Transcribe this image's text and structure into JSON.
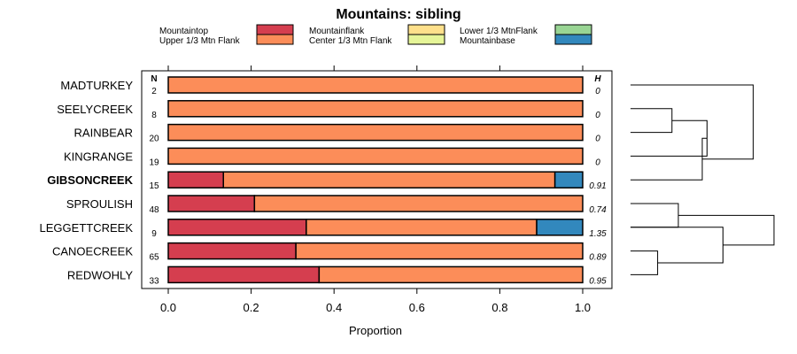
{
  "chart_data": {
    "type": "bar",
    "subtype": "stacked-horizontal-proportion",
    "title": "Mountains: sibling",
    "xlabel": "Proportion",
    "ylabel": "",
    "xlim": [
      0,
      1
    ],
    "xticks": [
      "0.0",
      "0.2",
      "0.4",
      "0.6",
      "0.8",
      "1.0"
    ],
    "n_header": "N",
    "h_header": "H",
    "legend": [
      {
        "name": "Mountaintop",
        "color": "#d53e4f"
      },
      {
        "name": "Upper 1/3 Mtn Flank",
        "color": "#fc8d59"
      },
      {
        "name": "Mountainflank",
        "color": "#fee08b"
      },
      {
        "name": "Center 1/3 Mtn Flank",
        "color": "#e6f598"
      },
      {
        "name": "Lower 1/3 MtnFlank",
        "color": "#99d594"
      },
      {
        "name": "Mountainbase",
        "color": "#3288bd"
      }
    ],
    "categories": [
      "MADTURKEY",
      "SEELYCREEK",
      "RAINBEAR",
      "KINGRANGE",
      "GIBSONCREEK",
      "SPROULISH",
      "LEGGETTCREEK",
      "CANOECREEK",
      "REDWOHLY"
    ],
    "highlight": "GIBSONCREEK",
    "n": [
      "2",
      "8",
      "20",
      "19",
      "15",
      "48",
      "9",
      "65",
      "33"
    ],
    "h": [
      "0",
      "0",
      "0",
      "0",
      "0.91",
      "0.74",
      "1.35",
      "0.89",
      "0.95"
    ],
    "series": [
      {
        "name": "Mountaintop",
        "values": [
          0,
          0,
          0,
          0,
          0.133,
          0.208,
          0.333,
          0.308,
          0.364
        ]
      },
      {
        "name": "Upper 1/3 Mtn Flank",
        "values": [
          1,
          1,
          1,
          1,
          0.8,
          0.792,
          0.556,
          0.692,
          0.636
        ]
      },
      {
        "name": "Mountainflank",
        "values": [
          0,
          0,
          0,
          0,
          0,
          0,
          0,
          0,
          0
        ]
      },
      {
        "name": "Center 1/3 Mtn Flank",
        "values": [
          0,
          0,
          0,
          0,
          0,
          0,
          0,
          0,
          0
        ]
      },
      {
        "name": "Lower 1/3 MtnFlank",
        "values": [
          0,
          0,
          0,
          0,
          0,
          0,
          0,
          0,
          0
        ]
      },
      {
        "name": "Mountainbase",
        "values": [
          0,
          0,
          0,
          0,
          0.067,
          0,
          0.111,
          0,
          0
        ]
      }
    ],
    "dendrogram": {
      "merges": [
        [
          1,
          2,
          0.26
        ],
        [
          -1,
          3,
          0.48
        ],
        [
          -2,
          4,
          0.45
        ],
        [
          -3,
          0,
          0.77
        ],
        [
          5,
          6,
          0.3
        ],
        [
          8,
          7,
          0.17
        ],
        [
          -6,
          6,
          0.58
        ],
        [
          -5,
          -7,
          0.9
        ]
      ],
      "max_height": 1.0
    }
  }
}
